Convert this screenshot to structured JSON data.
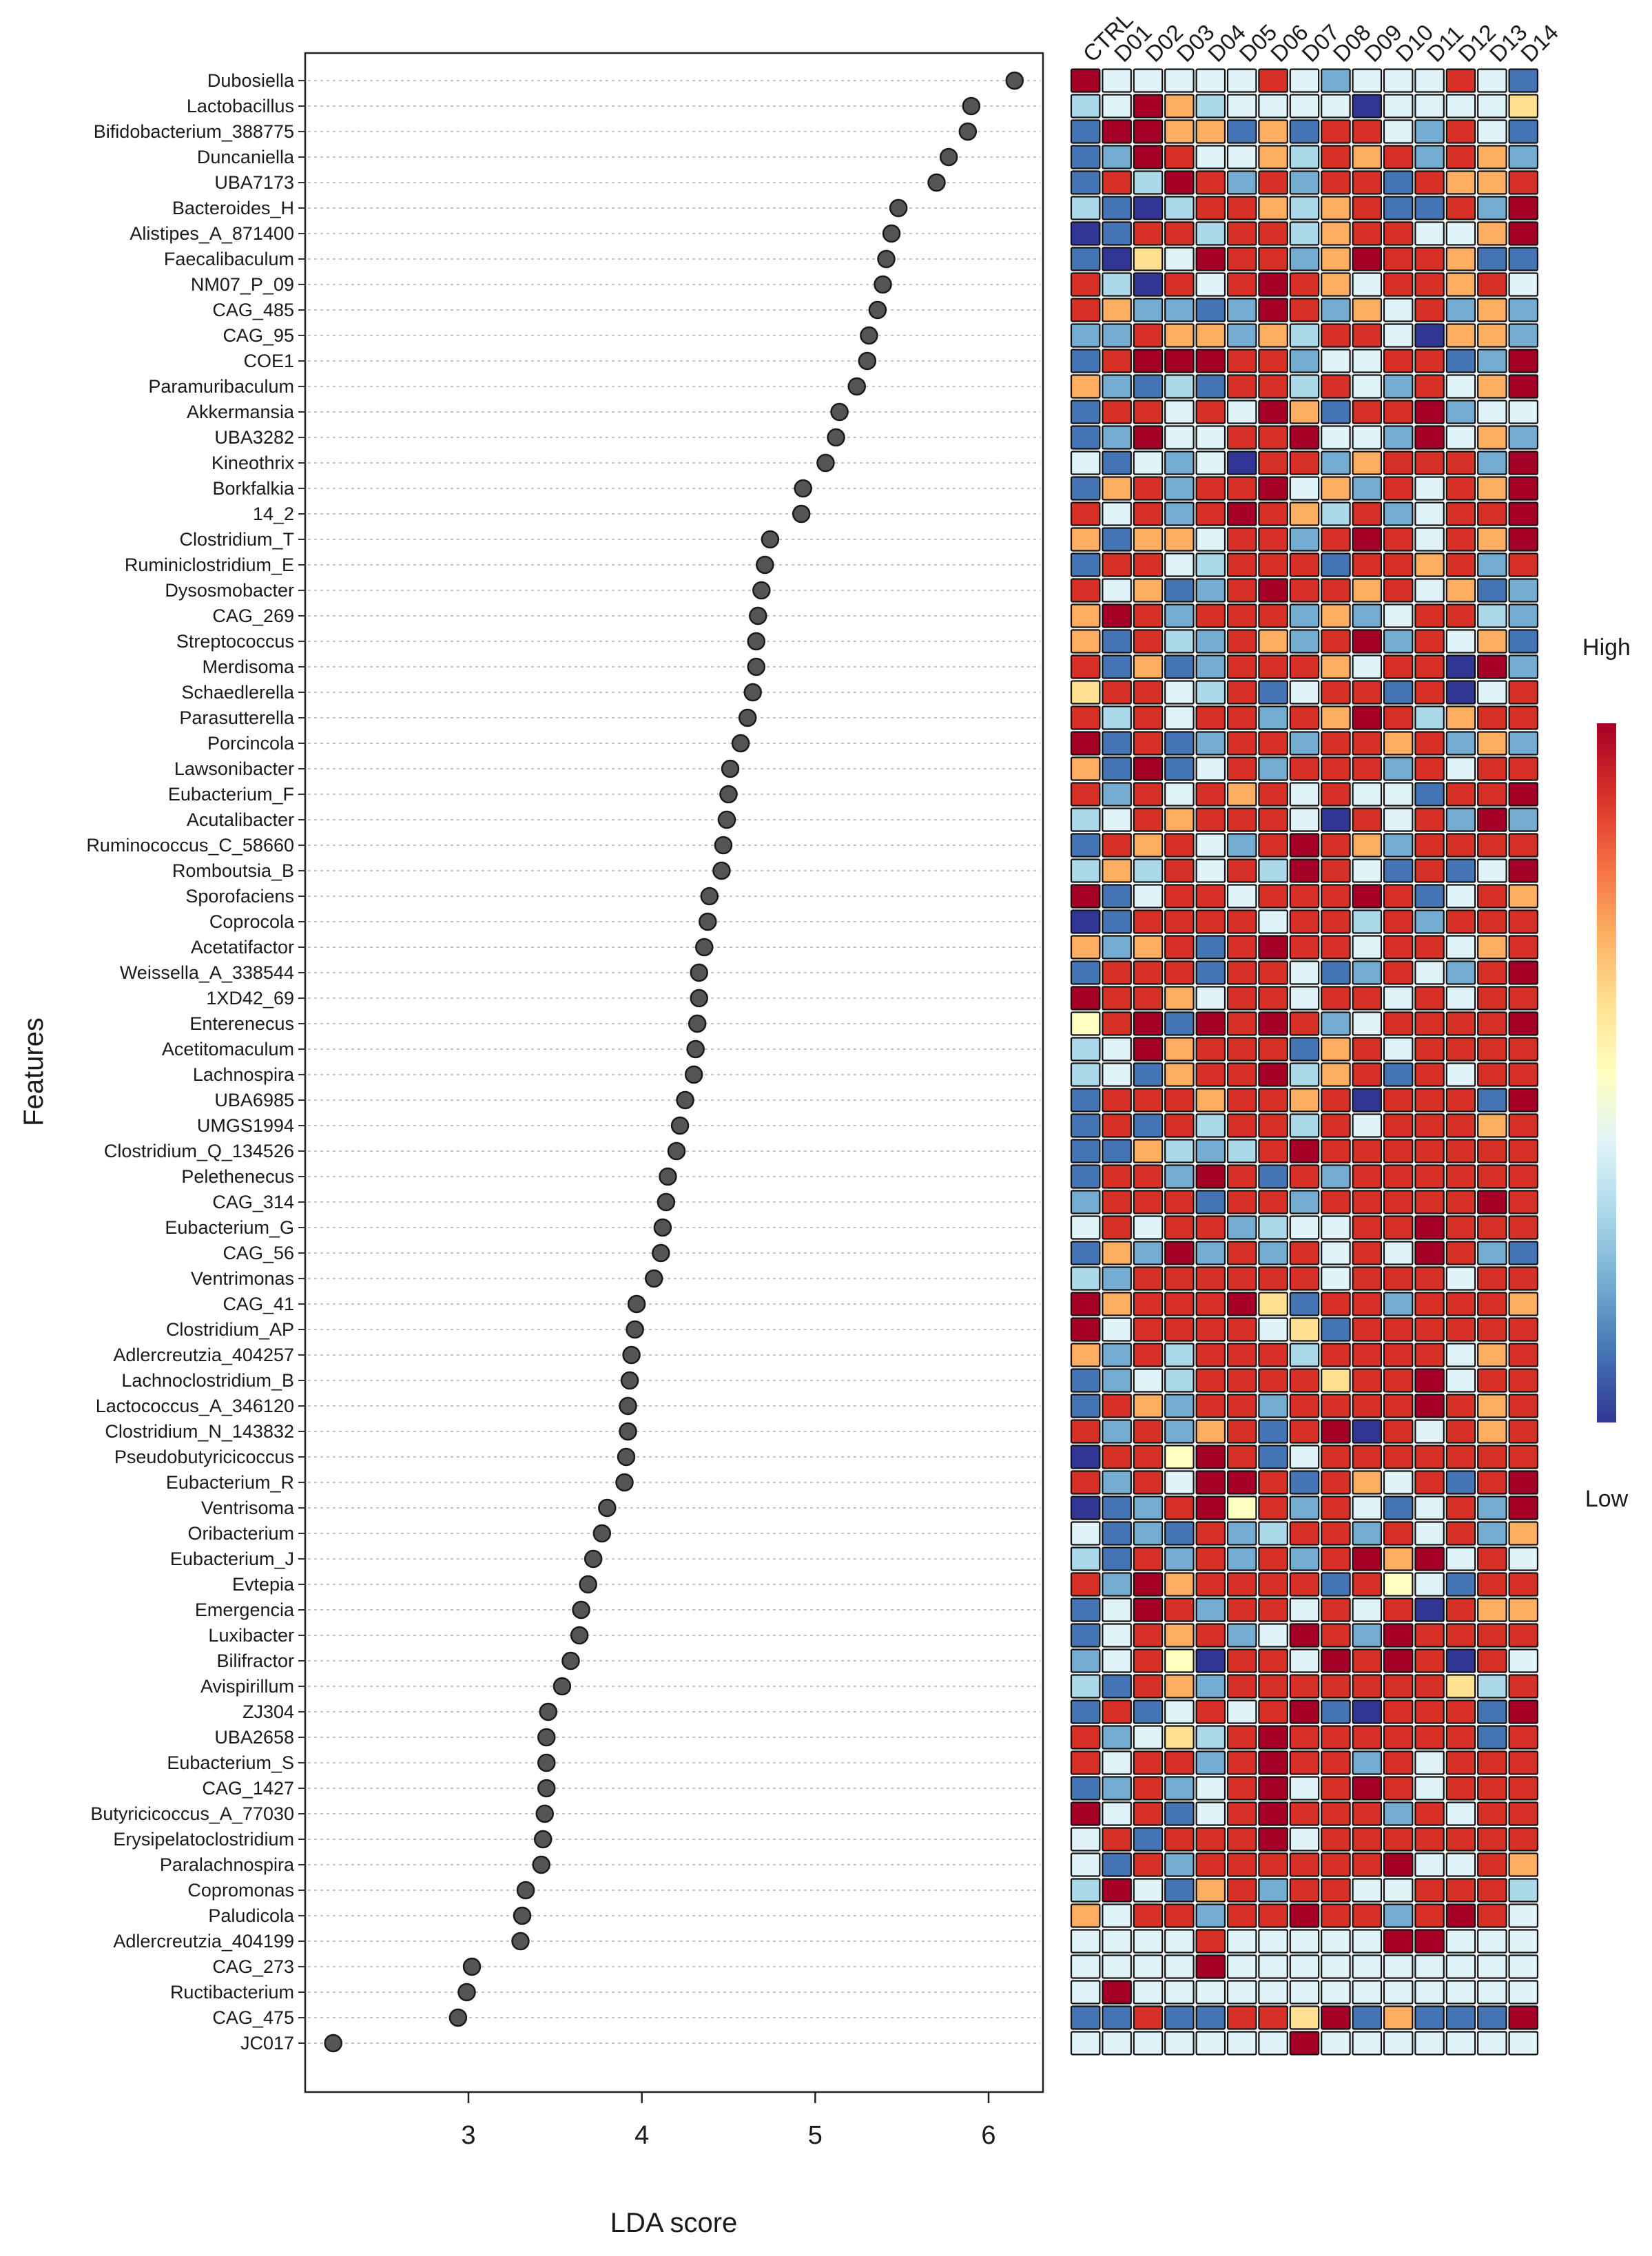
{
  "chart_data": {
    "type": "scatter",
    "subtype": "lda-dotplot-with-heatmap",
    "xlabel": "LDA score",
    "ylabel": "Features",
    "xlim": [
      2.1,
      6.35
    ],
    "xticks": [
      3,
      4,
      5,
      6
    ],
    "grid": "horizontal dotted guide lines",
    "features": [
      "Dubosiella",
      "Lactobacillus",
      "Bifidobacterium_388775",
      "Duncaniella",
      "UBA7173",
      "Bacteroides_H",
      "Alistipes_A_871400",
      "Faecalibaculum",
      "NM07_P_09",
      "CAG_485",
      "CAG_95",
      "COE1",
      "Paramuribaculum",
      "Akkermansia",
      "UBA3282",
      "Kineothrix",
      "Borkfalkia",
      "14_2",
      "Clostridium_T",
      "Ruminiclostridium_E",
      "Dysosmobacter",
      "CAG_269",
      "Streptococcus",
      "Merdisoma",
      "Schaedlerella",
      "Parasutterella",
      "Porcincola",
      "Lawsonibacter",
      "Eubacterium_F",
      "Acutalibacter",
      "Ruminococcus_C_58660",
      "Romboutsia_B",
      "Sporofaciens",
      "Coprocola",
      "Acetatifactor",
      "Weissella_A_338544",
      "1XD42_69",
      "Enterenecus",
      "Acetitomaculum",
      "Lachnospira",
      "UBA6985",
      "UMGS1994",
      "Clostridium_Q_134526",
      "Pelethenecus",
      "CAG_314",
      "Eubacterium_G",
      "CAG_56",
      "Ventrimonas",
      "CAG_41",
      "Clostridium_AP",
      "Adlercreutzia_404257",
      "Lachnoclostridium_B",
      "Lactococcus_A_346120",
      "Clostridium_N_143832",
      "Pseudobutyricicoccus",
      "Eubacterium_R",
      "Ventrisoma",
      "Oribacterium",
      "Eubacterium_J",
      "Evtepia",
      "Emergencia",
      "Luxibacter",
      "Bilifractor",
      "Avispirillum",
      "ZJ304",
      "UBA2658",
      "Eubacterium_S",
      "CAG_1427",
      "Butyricicoccus_A_77030",
      "Erysipelatoclostridium",
      "Paralachnospira",
      "Copromonas",
      "Paludicola",
      "Adlercreutzia_404199",
      "CAG_273",
      "Ructibacterium",
      "CAG_475",
      "JC017"
    ],
    "lda_scores": [
      6.15,
      5.9,
      5.88,
      5.77,
      5.7,
      5.48,
      5.44,
      5.41,
      5.39,
      5.36,
      5.31,
      5.3,
      5.24,
      5.14,
      5.12,
      5.06,
      4.93,
      4.92,
      4.74,
      4.71,
      4.69,
      4.67,
      4.66,
      4.66,
      4.64,
      4.61,
      4.57,
      4.51,
      4.5,
      4.49,
      4.47,
      4.46,
      4.39,
      4.38,
      4.36,
      4.33,
      4.33,
      4.32,
      4.31,
      4.3,
      4.25,
      4.22,
      4.2,
      4.15,
      4.14,
      4.12,
      4.11,
      4.07,
      3.97,
      3.96,
      3.94,
      3.93,
      3.92,
      3.92,
      3.91,
      3.9,
      3.8,
      3.77,
      3.72,
      3.69,
      3.65,
      3.64,
      3.59,
      3.54,
      3.46,
      3.45,
      3.45,
      3.45,
      3.44,
      3.43,
      3.42,
      3.33,
      3.31,
      3.3,
      3.02,
      2.99,
      2.94,
      2.22
    ],
    "groups": [
      "CTRL",
      "D01",
      "D02",
      "D03",
      "D04",
      "D05",
      "D06",
      "D07",
      "D08",
      "D09",
      "D10",
      "D11",
      "D12",
      "D13",
      "D14"
    ],
    "heatmap_scale": {
      "min": 0,
      "max": 10,
      "colors": [
        "#313695",
        "#4575b4",
        "#74add1",
        "#abd9e9",
        "#e0f3f8",
        "#ffffbf",
        "#fee090",
        "#fdae61",
        "#f46d43",
        "#d73027",
        "#a50026"
      ]
    },
    "heatmap_levels": [
      [
        10,
        4,
        4,
        4,
        4,
        4,
        9,
        4,
        2,
        4,
        4,
        4,
        9,
        4,
        1
      ],
      [
        3,
        4,
        10,
        7,
        3,
        4,
        4,
        4,
        4,
        0,
        4,
        4,
        4,
        4,
        6
      ],
      [
        1,
        10,
        10,
        7,
        7,
        1,
        7,
        1,
        9,
        9,
        4,
        2,
        9,
        4,
        1
      ],
      [
        1,
        2,
        10,
        9,
        4,
        4,
        7,
        3,
        9,
        7,
        9,
        2,
        9,
        7,
        2
      ],
      [
        1,
        9,
        3,
        10,
        9,
        2,
        9,
        2,
        9,
        9,
        1,
        9,
        7,
        7,
        9
      ],
      [
        3,
        1,
        0,
        3,
        9,
        9,
        7,
        3,
        7,
        9,
        1,
        1,
        9,
        2,
        10
      ],
      [
        0,
        1,
        9,
        9,
        3,
        9,
        9,
        3,
        7,
        9,
        9,
        4,
        4,
        7,
        10
      ],
      [
        1,
        0,
        6,
        4,
        10,
        9,
        9,
        2,
        7,
        10,
        9,
        9,
        7,
        1,
        1
      ],
      [
        9,
        3,
        0,
        9,
        4,
        9,
        10,
        9,
        7,
        4,
        9,
        9,
        7,
        9,
        4
      ],
      [
        9,
        7,
        2,
        2,
        1,
        2,
        10,
        9,
        2,
        7,
        4,
        9,
        2,
        7,
        2
      ],
      [
        2,
        2,
        9,
        7,
        7,
        2,
        7,
        3,
        9,
        9,
        4,
        0,
        7,
        7,
        2
      ],
      [
        1,
        9,
        10,
        10,
        10,
        9,
        9,
        2,
        4,
        4,
        9,
        9,
        1,
        2,
        10
      ],
      [
        7,
        2,
        1,
        3,
        1,
        9,
        9,
        3,
        9,
        4,
        2,
        9,
        4,
        7,
        10
      ],
      [
        1,
        9,
        9,
        4,
        9,
        4,
        10,
        7,
        1,
        9,
        9,
        10,
        2,
        4,
        4
      ],
      [
        1,
        2,
        10,
        4,
        4,
        9,
        9,
        10,
        4,
        4,
        2,
        10,
        4,
        7,
        2
      ],
      [
        4,
        1,
        4,
        2,
        4,
        0,
        9,
        9,
        2,
        7,
        9,
        9,
        9,
        2,
        10
      ],
      [
        1,
        7,
        9,
        2,
        9,
        9,
        10,
        4,
        7,
        2,
        9,
        4,
        9,
        7,
        10
      ],
      [
        9,
        4,
        9,
        2,
        9,
        10,
        9,
        7,
        3,
        9,
        2,
        4,
        9,
        9,
        10
      ],
      [
        7,
        1,
        7,
        7,
        4,
        9,
        9,
        2,
        9,
        10,
        9,
        4,
        9,
        7,
        10
      ],
      [
        1,
        9,
        9,
        4,
        3,
        9,
        9,
        9,
        1,
        9,
        9,
        7,
        9,
        2,
        9
      ],
      [
        9,
        4,
        7,
        1,
        2,
        9,
        10,
        9,
        9,
        7,
        9,
        4,
        7,
        1,
        2
      ],
      [
        7,
        10,
        9,
        2,
        9,
        9,
        9,
        2,
        7,
        2,
        4,
        9,
        9,
        3,
        2
      ],
      [
        7,
        1,
        9,
        3,
        2,
        9,
        7,
        2,
        9,
        10,
        2,
        9,
        4,
        7,
        1
      ],
      [
        9,
        1,
        7,
        1,
        2,
        9,
        9,
        9,
        7,
        4,
        9,
        9,
        0,
        10,
        2
      ],
      [
        6,
        9,
        9,
        4,
        3,
        9,
        1,
        4,
        9,
        9,
        1,
        9,
        0,
        4,
        9
      ],
      [
        9,
        3,
        9,
        4,
        9,
        9,
        2,
        9,
        7,
        10,
        9,
        3,
        7,
        9,
        9
      ],
      [
        10,
        1,
        9,
        1,
        2,
        9,
        9,
        2,
        9,
        9,
        7,
        9,
        2,
        7,
        2
      ],
      [
        7,
        1,
        10,
        1,
        4,
        9,
        2,
        9,
        9,
        9,
        2,
        9,
        4,
        9,
        9
      ],
      [
        9,
        2,
        9,
        4,
        9,
        7,
        9,
        4,
        9,
        4,
        4,
        1,
        9,
        9,
        10
      ],
      [
        3,
        4,
        9,
        7,
        9,
        9,
        9,
        4,
        0,
        9,
        4,
        9,
        2,
        10,
        2
      ],
      [
        1,
        9,
        7,
        9,
        4,
        2,
        9,
        10,
        9,
        7,
        2,
        9,
        9,
        9,
        9
      ],
      [
        3,
        7,
        3,
        9,
        4,
        9,
        3,
        10,
        9,
        4,
        1,
        9,
        1,
        4,
        10
      ],
      [
        10,
        1,
        4,
        9,
        9,
        4,
        9,
        9,
        9,
        10,
        9,
        1,
        4,
        9,
        7
      ],
      [
        0,
        1,
        9,
        9,
        9,
        9,
        4,
        9,
        9,
        3,
        9,
        2,
        9,
        9,
        9
      ],
      [
        7,
        2,
        7,
        9,
        1,
        9,
        10,
        9,
        9,
        4,
        9,
        9,
        4,
        7,
        9
      ],
      [
        1,
        9,
        9,
        9,
        1,
        9,
        9,
        4,
        1,
        2,
        9,
        4,
        2,
        9,
        10
      ],
      [
        10,
        9,
        9,
        7,
        4,
        9,
        9,
        4,
        9,
        9,
        4,
        9,
        4,
        9,
        9
      ],
      [
        5,
        9,
        10,
        1,
        10,
        9,
        10,
        9,
        2,
        4,
        9,
        9,
        9,
        9,
        10
      ],
      [
        3,
        4,
        10,
        7,
        9,
        9,
        9,
        1,
        7,
        9,
        4,
        9,
        9,
        9,
        9
      ],
      [
        3,
        4,
        1,
        7,
        9,
        9,
        10,
        3,
        7,
        9,
        1,
        9,
        4,
        9,
        9
      ],
      [
        1,
        9,
        9,
        9,
        7,
        9,
        9,
        7,
        9,
        0,
        9,
        9,
        9,
        1,
        10
      ],
      [
        1,
        9,
        1,
        9,
        3,
        9,
        9,
        3,
        9,
        4,
        9,
        9,
        9,
        7,
        9
      ],
      [
        1,
        1,
        7,
        3,
        2,
        3,
        9,
        10,
        9,
        9,
        9,
        9,
        9,
        9,
        9
      ],
      [
        1,
        9,
        9,
        2,
        10,
        9,
        1,
        9,
        2,
        9,
        9,
        9,
        9,
        9,
        9
      ],
      [
        2,
        9,
        9,
        9,
        1,
        9,
        9,
        2,
        9,
        9,
        9,
        9,
        9,
        10,
        9
      ],
      [
        4,
        9,
        4,
        9,
        9,
        2,
        3,
        4,
        4,
        9,
        9,
        10,
        9,
        9,
        9
      ],
      [
        1,
        7,
        2,
        10,
        2,
        9,
        2,
        9,
        4,
        9,
        4,
        10,
        9,
        2,
        1
      ],
      [
        3,
        2,
        9,
        9,
        9,
        9,
        9,
        9,
        4,
        9,
        9,
        9,
        4,
        9,
        9
      ],
      [
        10,
        7,
        9,
        9,
        9,
        10,
        6,
        1,
        9,
        9,
        2,
        9,
        9,
        9,
        7
      ],
      [
        10,
        4,
        9,
        9,
        9,
        9,
        4,
        6,
        1,
        9,
        9,
        9,
        9,
        9,
        9
      ],
      [
        7,
        2,
        9,
        3,
        9,
        9,
        9,
        3,
        9,
        9,
        9,
        9,
        4,
        7,
        9
      ],
      [
        1,
        2,
        4,
        3,
        9,
        9,
        9,
        9,
        6,
        9,
        9,
        10,
        4,
        9,
        9
      ],
      [
        1,
        9,
        7,
        2,
        9,
        9,
        2,
        9,
        9,
        9,
        9,
        10,
        9,
        7,
        9
      ],
      [
        9,
        2,
        9,
        2,
        7,
        9,
        1,
        9,
        10,
        0,
        9,
        4,
        9,
        7,
        9
      ],
      [
        0,
        9,
        9,
        5,
        10,
        9,
        1,
        4,
        9,
        9,
        9,
        9,
        9,
        9,
        9
      ],
      [
        9,
        2,
        9,
        4,
        10,
        10,
        9,
        1,
        9,
        7,
        4,
        9,
        1,
        9,
        10
      ],
      [
        0,
        1,
        2,
        9,
        10,
        5,
        9,
        2,
        9,
        4,
        1,
        4,
        9,
        2,
        10
      ],
      [
        4,
        1,
        2,
        1,
        9,
        2,
        3,
        9,
        9,
        2,
        9,
        4,
        9,
        2,
        7
      ],
      [
        3,
        1,
        9,
        2,
        9,
        2,
        9,
        2,
        9,
        10,
        7,
        10,
        4,
        9,
        4
      ],
      [
        9,
        2,
        10,
        7,
        9,
        9,
        9,
        9,
        1,
        9,
        5,
        4,
        1,
        9,
        9
      ],
      [
        1,
        4,
        10,
        9,
        2,
        9,
        9,
        4,
        9,
        4,
        9,
        0,
        9,
        7,
        7
      ],
      [
        1,
        4,
        9,
        7,
        9,
        2,
        4,
        10,
        9,
        2,
        10,
        9,
        9,
        9,
        9
      ],
      [
        2,
        4,
        9,
        5,
        0,
        9,
        9,
        4,
        10,
        9,
        10,
        9,
        0,
        9,
        4
      ],
      [
        3,
        1,
        9,
        7,
        2,
        9,
        9,
        9,
        9,
        9,
        9,
        9,
        6,
        3,
        9
      ],
      [
        1,
        9,
        1,
        4,
        9,
        4,
        9,
        10,
        1,
        0,
        9,
        9,
        9,
        1,
        10
      ],
      [
        9,
        2,
        4,
        6,
        3,
        9,
        10,
        9,
        9,
        9,
        9,
        9,
        9,
        1,
        9
      ],
      [
        9,
        4,
        9,
        9,
        2,
        9,
        10,
        9,
        9,
        2,
        9,
        4,
        9,
        9,
        9
      ],
      [
        1,
        2,
        9,
        2,
        4,
        9,
        10,
        4,
        9,
        10,
        9,
        4,
        9,
        9,
        9
      ],
      [
        10,
        4,
        9,
        1,
        4,
        9,
        10,
        9,
        9,
        9,
        2,
        9,
        4,
        9,
        9
      ],
      [
        4,
        9,
        1,
        9,
        9,
        9,
        10,
        4,
        9,
        9,
        9,
        9,
        9,
        9,
        9
      ],
      [
        4,
        1,
        9,
        2,
        9,
        9,
        9,
        9,
        9,
        9,
        10,
        4,
        4,
        9,
        7
      ],
      [
        3,
        10,
        4,
        1,
        7,
        9,
        2,
        9,
        9,
        4,
        4,
        9,
        9,
        9,
        3
      ],
      [
        7,
        4,
        9,
        9,
        2,
        9,
        9,
        10,
        9,
        9,
        2,
        9,
        10,
        9,
        4
      ],
      [
        4,
        4,
        4,
        4,
        9,
        4,
        4,
        4,
        4,
        4,
        10,
        10,
        4,
        4,
        4
      ],
      [
        4,
        4,
        4,
        4,
        10,
        4,
        4,
        4,
        4,
        4,
        4,
        4,
        4,
        4,
        4
      ],
      [
        4,
        10,
        4,
        4,
        4,
        4,
        4,
        4,
        4,
        4,
        4,
        4,
        4,
        4,
        4
      ],
      [
        1,
        1,
        9,
        1,
        1,
        9,
        9,
        6,
        10,
        1,
        7,
        1,
        1,
        1,
        10
      ],
      [
        4,
        4,
        4,
        4,
        4,
        4,
        4,
        10,
        4,
        4,
        4,
        4,
        4,
        4,
        4
      ]
    ],
    "legend": {
      "position": "right",
      "high_label": "High",
      "low_label": "Low"
    }
  }
}
